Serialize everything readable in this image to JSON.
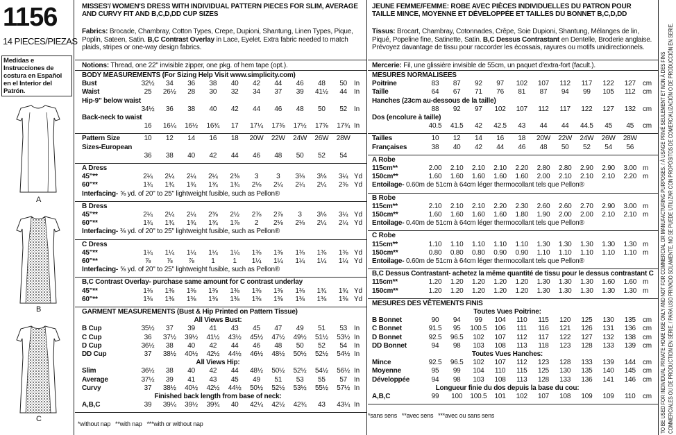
{
  "pattern_number": "1156",
  "pieces": "14 PIECES/PIEZAS",
  "spanish_note": "Medidas e Instrucciones de costura en Español en el Interior del Patrón.",
  "views": [
    "A",
    "B",
    "C"
  ],
  "english": {
    "title": "MISSES'/ WOMEN'S DRESS WITH INDIVIDUAL PATTERN PIECES FOR SLIM, AVERAGE AND CURVY FIT AND B,C,D,DD CUP SIZES",
    "fabrics": {
      "label": "Fabrics:",
      "text": "Brocade, Chambray, Cotton Types, Crepe, Dupioni, Shantung, Linen Types, Pique, Poplin, Sateen, Satin.",
      "bold": "B,C Contrast Overlay",
      "text_end": "in Lace, Eyelet. Extra fabric needed to match plaids, stripes or one-way design fabrics."
    },
    "notions": {
      "label": "Notions:",
      "text": "Thread, one 22\" invisible zipper, one pkg. of hem tape (opt.)."
    },
    "sections": [
      {
        "heading": "BODY MEASUREMENTS (For Sizing Help Visit www.simplicity.com)",
        "rows": [
          {
            "label": "Bust",
            "cells": [
              "32½",
              "34",
              "36",
              "38",
              "40",
              "42",
              "44",
              "46",
              "48",
              "50"
            ],
            "unit": "In"
          },
          {
            "label": "Waist",
            "cells": [
              "25",
              "26½",
              "28",
              "30",
              "32",
              "34",
              "37",
              "39",
              "41½",
              "44"
            ],
            "unit": "In"
          },
          {
            "label": "Hip-9\" below waist",
            "cells": [
              "34½",
              "36",
              "38",
              "40",
              "42",
              "44",
              "46",
              "48",
              "50",
              "52"
            ],
            "unit": "In"
          },
          {
            "label": "Back-neck to waist",
            "cells": [
              "16",
              "16¼",
              "16½",
              "16¾",
              "17",
              "17¼",
              "17⅜",
              "17½",
              "17⅝",
              "17¾"
            ],
            "unit": "In"
          }
        ]
      },
      {
        "rows": [
          {
            "label": "Pattern Size",
            "cells": [
              "10",
              "12",
              "14",
              "16",
              "18",
              "20W",
              "22W",
              "24W",
              "26W",
              "28W"
            ]
          },
          {
            "label": "Sizes-European",
            "cells": [
              "36",
              "38",
              "40",
              "42",
              "44",
              "46",
              "48",
              "50",
              "52",
              "54"
            ]
          }
        ]
      },
      {
        "heading": "A Dress",
        "rows": [
          {
            "label": "45\"**",
            "cells": [
              "2¼",
              "2¼",
              "2¼",
              "2¼",
              "2⅜",
              "3",
              "3",
              "3⅛",
              "3⅛",
              "3¼"
            ],
            "unit": "Yd"
          },
          {
            "label": "60\"**",
            "cells": [
              "1¾",
              "1¾",
              "1¾",
              "1¾",
              "1¾",
              "2⅛",
              "2¼",
              "2¼",
              "2¼",
              "2⅜"
            ],
            "unit": "Yd"
          },
          {
            "label": "Interfacing-",
            "text": "⅝ yd. of 20\" to 25\" lightweight fusible, such as Pellon®"
          }
        ]
      },
      {
        "heading": "B Dress",
        "rows": [
          {
            "label": "45\"**",
            "cells": [
              "2¼",
              "2¼",
              "2¼",
              "2⅜",
              "2½",
              "2⅞",
              "2⅞",
              "3",
              "3⅛",
              "3¼"
            ],
            "unit": "Yd"
          },
          {
            "label": "60\"**",
            "cells": [
              "1¾",
              "1¾",
              "1¾",
              "1¾",
              "1⅞",
              "2",
              "2⅛",
              "2⅛",
              "2¼",
              "2¼"
            ],
            "unit": "Yd"
          },
          {
            "label": "Interfacing-",
            "text": "⅜ yd. of 20\" to 25\" lightweight fusible, such as Pellon®"
          }
        ]
      },
      {
        "heading": "C Dress",
        "rows": [
          {
            "label": "45\"**",
            "cells": [
              "1¼",
              "1¼",
              "1¼",
              "1¼",
              "1¼",
              "1⅜",
              "1⅜",
              "1⅜",
              "1⅜",
              "1⅜"
            ],
            "unit": "Yd"
          },
          {
            "label": "60\"**",
            "cells": [
              "⅞",
              "⅞",
              "⅞",
              "1",
              "1",
              "1¼",
              "1¼",
              "1¼",
              "1¼",
              "1¼"
            ],
            "unit": "Yd"
          },
          {
            "label": "Interfacing-",
            "text": "⅝ yd. of 20\" to 25\" lightweight fusible, such as Pellon®"
          }
        ]
      },
      {
        "heading": "B,C Contrast Overlay- purchase same amount for C contrast underlay",
        "rows": [
          {
            "label": "45\"**",
            "cells": [
              "1⅜",
              "1⅜",
              "1⅜",
              "1⅜",
              "1⅜",
              "1⅜",
              "1⅜",
              "1⅜",
              "1¾",
              "1¾"
            ],
            "unit": "Yd"
          },
          {
            "label": "60\"**",
            "cells": [
              "1⅜",
              "1⅜",
              "1⅜",
              "1⅜",
              "1⅜",
              "1⅜",
              "1⅜",
              "1⅜",
              "1⅜",
              "1⅜"
            ],
            "unit": "Yd"
          }
        ]
      },
      {
        "heading": "GARMENT MEASUREMENTS (Bust & Hip Printed on Pattern Tissue)",
        "rows": [
          {
            "subheading": "All Views Bust:"
          },
          {
            "label": "B Cup",
            "cells": [
              "35½",
              "37",
              "39",
              "41",
              "43",
              "45",
              "47",
              "49",
              "51",
              "53"
            ],
            "unit": "In"
          },
          {
            "label": "C Cup",
            "cells": [
              "36",
              "37½",
              "39½",
              "41½",
              "43½",
              "45½",
              "47½",
              "49½",
              "51½",
              "53½"
            ],
            "unit": "In"
          },
          {
            "label": "D Cup",
            "cells": [
              "36½",
              "38",
              "40",
              "42",
              "44",
              "46",
              "48",
              "50",
              "52",
              "54"
            ],
            "unit": "In"
          },
          {
            "label": "DD Cup",
            "cells": [
              "37",
              "38½",
              "40½",
              "42½",
              "44½",
              "46½",
              "48½",
              "50½",
              "52½",
              "54½"
            ],
            "unit": "In"
          },
          {
            "subheading": "All Views Hip:"
          },
          {
            "label": "Slim",
            "cells": [
              "36½",
              "38",
              "40",
              "42",
              "44",
              "48½",
              "50½",
              "52½",
              "54½",
              "56½"
            ],
            "unit": "In"
          },
          {
            "label": "Average",
            "cells": [
              "37½",
              "39",
              "41",
              "43",
              "45",
              "49",
              "51",
              "53",
              "55",
              "57"
            ],
            "unit": "In"
          },
          {
            "label": "Curvy",
            "cells": [
              "37",
              "38½",
              "40½",
              "42½",
              "44½",
              "50½",
              "52½",
              "53½",
              "55½",
              "57½"
            ],
            "unit": "In"
          },
          {
            "subheading": "Finished back length from base of neck:"
          },
          {
            "label": "A,B,C",
            "cells": [
              "39",
              "39¼",
              "39½",
              "39¾",
              "40",
              "42¼",
              "42½",
              "42¾",
              "43",
              "43¼"
            ],
            "unit": "In"
          }
        ]
      }
    ],
    "footnote": "*without nap   **with nap   ***with or without nap"
  },
  "french": {
    "title": "JEUNE FEMME/FEMME: ROBE AVEC PIÈCES INDIVIDUELLES DU PATRON POUR TAILLE MINCE, MOYENNE ET DÉVELOPPÉE ET TAILLES DU BONNET B,C,D,DD",
    "fabrics": {
      "label": "Tissus:",
      "text": "Brocart, Chambray, Cotonnades, Crêpe, Soie Dupioni, Shantung, Mélanges de lin, Piqué, Popeline fine, Satinette, Satin.",
      "bold": "B,C Dessus Contrastant",
      "text_end": "en Dentelle, Broderie anglaise. Prévoyez davantage de tissu pour raccorder les écossais, rayures ou motifs unidirectionnels."
    },
    "notions": {
      "label": "Mercerie:",
      "text": "Fil, une glissière invisible de 55cm, un paquet d'extra-fort (facult.)."
    },
    "sections": [
      {
        "heading": "MESURES NORMALISEES",
        "rows": [
          {
            "label": "Poitrine",
            "cells": [
              "83",
              "87",
              "92",
              "97",
              "102",
              "107",
              "112",
              "117",
              "122",
              "127"
            ],
            "unit": "cm"
          },
          {
            "label": "Taille",
            "cells": [
              "64",
              "67",
              "71",
              "76",
              "81",
              "87",
              "94",
              "99",
              "105",
              "112"
            ],
            "unit": "cm"
          },
          {
            "label": "Hanches (23cm au-dessous de la taille)",
            "cells": [
              "88",
              "92",
              "97",
              "102",
              "107",
              "112",
              "117",
              "122",
              "127",
              "132"
            ],
            "unit": "cm"
          },
          {
            "label": "Dos (encolure à taille)",
            "cells": [
              "40.5",
              "41.5",
              "42",
              "42.5",
              "43",
              "44",
              "44",
              "44.5",
              "45",
              "45"
            ],
            "unit": "cm"
          }
        ]
      },
      {
        "rows": [
          {
            "label": "Tailles",
            "cells": [
              "10",
              "12",
              "14",
              "16",
              "18",
              "20W",
              "22W",
              "24W",
              "26W",
              "28W"
            ]
          },
          {
            "label": "Françaises",
            "cells": [
              "38",
              "40",
              "42",
              "44",
              "46",
              "48",
              "50",
              "52",
              "54",
              "56"
            ]
          }
        ]
      },
      {
        "heading": "A Robe",
        "rows": [
          {
            "label": "115cm**",
            "cells": [
              "2.00",
              "2.10",
              "2.10",
              "2.10",
              "2.20",
              "2.80",
              "2.80",
              "2.90",
              "2.90",
              "3.00"
            ],
            "unit": "m"
          },
          {
            "label": "150cm**",
            "cells": [
              "1.60",
              "1.60",
              "1.60",
              "1.60",
              "1.60",
              "2.00",
              "2.10",
              "2.10",
              "2.10",
              "2.20"
            ],
            "unit": "m"
          },
          {
            "label": "Entoilage-",
            "text": "0.60m de 51cm à 64cm léger thermocollant tels que Pellon®"
          }
        ]
      },
      {
        "heading": "B Robe",
        "rows": [
          {
            "label": "115cm**",
            "cells": [
              "2.10",
              "2.10",
              "2.10",
              "2.20",
              "2.30",
              "2.60",
              "2.60",
              "2.70",
              "2.90",
              "3.00"
            ],
            "unit": "m"
          },
          {
            "label": "150cm**",
            "cells": [
              "1.60",
              "1.60",
              "1.60",
              "1.60",
              "1.80",
              "1.90",
              "2.00",
              "2.00",
              "2.10",
              "2.10"
            ],
            "unit": "m"
          },
          {
            "label": "Entoilage-",
            "text": "0.40m de 51cm à 64cm léger thermocollant tels que Pellon®"
          }
        ]
      },
      {
        "heading": "C Robe",
        "rows": [
          {
            "label": "115cm**",
            "cells": [
              "1.10",
              "1.10",
              "1.10",
              "1.10",
              "1.10",
              "1.30",
              "1.30",
              "1.30",
              "1.30",
              "1.30"
            ],
            "unit": "m"
          },
          {
            "label": "150cm**",
            "cells": [
              "0.80",
              "0.80",
              "0.80",
              "0.90",
              "0.90",
              "1.10",
              "1.10",
              "1.10",
              "1.10",
              "1.10"
            ],
            "unit": "m"
          },
          {
            "label": "Entoilage-",
            "text": "0.60m de 51cm à 64cm léger thermocollant tels que Pellon®"
          }
        ]
      },
      {
        "heading": "B,C Dessus Contrastant- achetez la même quantité de tissu pour le dessus contrastant C",
        "rows": [
          {
            "label": "115cm**",
            "cells": [
              "1.20",
              "1.20",
              "1.20",
              "1.20",
              "1.20",
              "1.30",
              "1.30",
              "1.30",
              "1.60",
              "1.60"
            ],
            "unit": "m"
          },
          {
            "label": "150cm**",
            "cells": [
              "1.20",
              "1.20",
              "1.20",
              "1.20",
              "1.20",
              "1.30",
              "1.30",
              "1.30",
              "1.30",
              "1.30"
            ],
            "unit": "m"
          }
        ]
      },
      {
        "heading": "MESURES DES VÊTEMENTS FINIS",
        "rows": [
          {
            "subheading": "Toutes Vues Poitrine:"
          },
          {
            "label": "B Bonnet",
            "cells": [
              "90",
              "94",
              "99",
              "104",
              "110",
              "115",
              "120",
              "125",
              "130",
              "135"
            ],
            "unit": "cm"
          },
          {
            "label": "C Bonnet",
            "cells": [
              "91.5",
              "95",
              "100.5",
              "106",
              "111",
              "116",
              "121",
              "126",
              "131",
              "136"
            ],
            "unit": "cm"
          },
          {
            "label": "D Bonnet",
            "cells": [
              "92.5",
              "96.5",
              "102",
              "107",
              "112",
              "117",
              "122",
              "127",
              "132",
              "138"
            ],
            "unit": "cm"
          },
          {
            "label": "DD Bonnet",
            "cells": [
              "94",
              "98",
              "103",
              "108",
              "113",
              "118",
              "123",
              "128",
              "133",
              "139"
            ],
            "unit": "cm"
          },
          {
            "subheading": "Toutes Vues Hanches:"
          },
          {
            "label": "Mince",
            "cells": [
              "92.5",
              "96.5",
              "102",
              "107",
              "112",
              "123",
              "128",
              "133",
              "139",
              "144"
            ],
            "unit": "cm"
          },
          {
            "label": "Moyenne",
            "cells": [
              "95",
              "99",
              "104",
              "110",
              "115",
              "125",
              "130",
              "135",
              "140",
              "145"
            ],
            "unit": "cm"
          },
          {
            "label": "Développée",
            "cells": [
              "94",
              "98",
              "103",
              "108",
              "113",
              "128",
              "133",
              "136",
              "141",
              "146"
            ],
            "unit": "cm"
          },
          {
            "subheading": "Longueur finie du dos depuis la base du cou:"
          },
          {
            "label": "A,B,C",
            "cells": [
              "99",
              "100",
              "100.5",
              "101",
              "102",
              "107",
              "108",
              "109",
              "109",
              "110"
            ],
            "unit": "cm"
          }
        ]
      }
    ],
    "footnote": "*sans sens   **avec sens   ***avec ou sans sens"
  },
  "legal": [
    "TO BE USED FOR INDIVIDUAL PRIVATE HOME USE ONLY AND NOT FOR COMMERCIAL OR MANUFACTURING PURPOSES. / À USAGE PRIVÉ SEULEMENT ET NON À DES FINS",
    "COMMERCIALES OU DE PRODUCTION EN SÉRIE. / PARA USO PRIVADO SOLAMENTE, NO SE PUEDE UTILIZAR CON PROPÓSITOS DE COMERCIALIZACIÓN O DE PRODUCCIÓN EN SERIE."
  ]
}
